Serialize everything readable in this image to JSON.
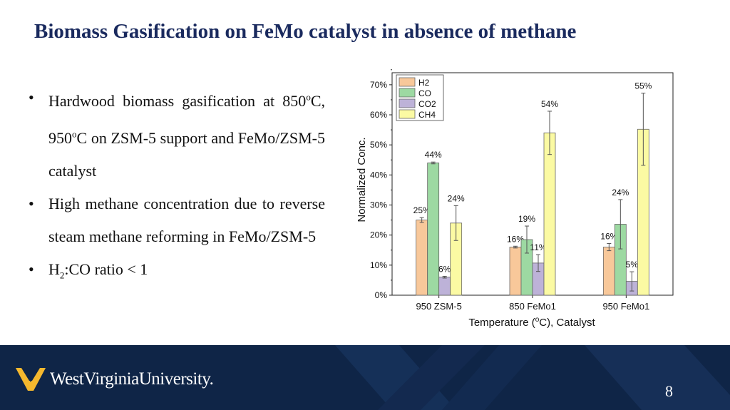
{
  "slide": {
    "title": "Biomass Gasification on FeMo catalyst in absence of methane",
    "page_number": "8"
  },
  "bullets": [
    {
      "parts": [
        "Hardwood biomass gasification at 850",
        "o",
        "C, 950",
        "o",
        "C on ZSM-5 support and FeMo/ZSM-5 catalyst"
      ]
    },
    {
      "parts": [
        "High methane concentration due to reverse steam methane reforming in FeMo/ZSM-5"
      ]
    },
    {
      "parts": [
        "H",
        "2",
        ":CO ratio < 1"
      ]
    }
  ],
  "footer": {
    "logo_text": "WestVirginiaUniversity.",
    "background": "#0f2547"
  },
  "chart_data": {
    "type": "bar",
    "categories": [
      "950 ZSM-5",
      "850 FeMo1",
      "950 FeMo1"
    ],
    "series": [
      {
        "name": "H2",
        "values": [
          25,
          16,
          16
        ],
        "errors": [
          0.8,
          0.3,
          1.2
        ],
        "labels": [
          "25%",
          "16%",
          "16%"
        ],
        "color": "#f8c89a"
      },
      {
        "name": "CO",
        "values": [
          44,
          18.5,
          23.6
        ],
        "errors": [
          0.3,
          4.5,
          8.2
        ],
        "labels": [
          "44%",
          "19%",
          "24%"
        ],
        "color": "#9dd9a2"
      },
      {
        "name": "CO2",
        "values": [
          6,
          10.7,
          4.6
        ],
        "errors": [
          0.3,
          2.8,
          3.2
        ],
        "labels": [
          "6%",
          "11%",
          "5%"
        ],
        "color": "#bdb2d8"
      },
      {
        "name": "CH4",
        "values": [
          24,
          54,
          55.2
        ],
        "errors": [
          5.8,
          7.2,
          12
        ],
        "labels": [
          "24%",
          "54%",
          "55%"
        ],
        "color": "#fbfaa3"
      }
    ],
    "xlabel_parts": [
      "Temperature (",
      "o",
      "C), Catalyst"
    ],
    "ylabel": "Normalized Conc.",
    "ylim": [
      0,
      74
    ],
    "yticks": [
      0,
      10,
      20,
      30,
      40,
      50,
      60,
      70
    ],
    "ytick_labels": [
      "0%",
      "10%",
      "20%",
      "30%",
      "40%",
      "50%",
      "60%",
      "70%"
    ],
    "legend_position": "top-left",
    "grid": false
  }
}
